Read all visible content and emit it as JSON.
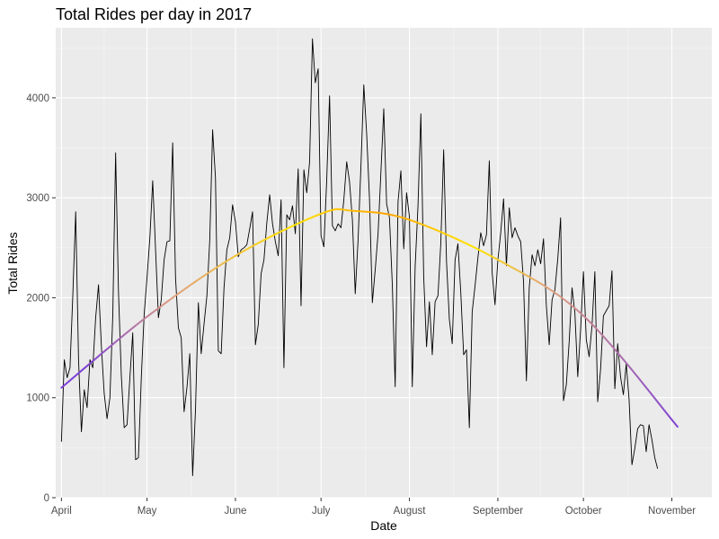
{
  "chart_data": {
    "type": "line",
    "title": "Total Rides per day in 2017",
    "xlabel": "Date",
    "ylabel": "Total Rides",
    "x_ticks": [
      "April",
      "May",
      "June",
      "July",
      "August",
      "September",
      "October",
      "November"
    ],
    "y_ticks": [
      0,
      1000,
      2000,
      3000,
      4000
    ],
    "xlim": [
      "2017-03-30",
      "2017-11-15"
    ],
    "ylim": [
      0,
      4700
    ],
    "grid": true,
    "background": "#EBEBEB",
    "series": [
      {
        "kind": "daily_totals",
        "color": "#000000",
        "x_start": "2017-04-01",
        "x_step_days": 1,
        "values": [
          560,
          1380,
          1200,
          1300,
          2030,
          2860,
          1380,
          660,
          1080,
          900,
          1380,
          1300,
          1800,
          2130,
          1520,
          1040,
          790,
          1000,
          1820,
          3450,
          2060,
          1220,
          700,
          730,
          1200,
          1650,
          380,
          400,
          1200,
          1830,
          2200,
          2600,
          3170,
          2480,
          1800,
          1980,
          2380,
          2560,
          2570,
          3550,
          2200,
          1700,
          1600,
          860,
          1100,
          1440,
          220,
          880,
          1950,
          1440,
          1740,
          2020,
          2580,
          3680,
          3200,
          1470,
          1440,
          2100,
          2480,
          2600,
          2930,
          2760,
          2410,
          2480,
          2500,
          2530,
          2690,
          2860,
          1530,
          1730,
          2240,
          2380,
          2750,
          3030,
          2740,
          2560,
          2420,
          2980,
          1300,
          2830,
          2780,
          2920,
          2640,
          3290,
          1920,
          3280,
          3050,
          3360,
          4590,
          4150,
          4290,
          2620,
          2510,
          3180,
          4020,
          2720,
          2670,
          2740,
          2700,
          2980,
          3360,
          3160,
          2780,
          2040,
          2580,
          3320,
          4130,
          3640,
          2990,
          1950,
          2280,
          2640,
          3260,
          3890,
          2940,
          2800,
          2130,
          1110,
          2960,
          3270,
          2490,
          3050,
          2810,
          1110,
          2310,
          2920,
          3840,
          2210,
          1510,
          1960,
          1430,
          1960,
          2020,
          2550,
          3480,
          2360,
          1780,
          1540,
          2380,
          2540,
          2050,
          1430,
          1480,
          700,
          1860,
          2120,
          2400,
          2650,
          2520,
          2630,
          3370,
          2250,
          1930,
          2380,
          2650,
          2990,
          2320,
          2900,
          2600,
          2700,
          2620,
          2560,
          2160,
          1170,
          2100,
          2430,
          2320,
          2480,
          2340,
          2590,
          1920,
          1530,
          1980,
          2080,
          2390,
          2800,
          970,
          1130,
          1560,
          2100,
          1850,
          1210,
          1680,
          2260,
          1580,
          1410,
          1720,
          2260,
          960,
          1280,
          1820,
          1870,
          1920,
          2270,
          1090,
          1540,
          1210,
          1030,
          1340,
          980,
          330,
          490,
          690,
          730,
          720,
          460,
          730,
          580,
          400,
          290
        ]
      },
      {
        "kind": "smooth_trend",
        "gradient_colors": [
          "#7B3FD6",
          "#E0A080",
          "#FFE400",
          "#FFA500"
        ],
        "points": [
          {
            "x": "2017-04-01",
            "y": 1100
          },
          {
            "x": "2017-05-01",
            "y": 1810
          },
          {
            "x": "2017-06-01",
            "y": 2420
          },
          {
            "x": "2017-07-01",
            "y": 2840
          },
          {
            "x": "2017-07-12",
            "y": 2870
          },
          {
            "x": "2017-08-01",
            "y": 2780
          },
          {
            "x": "2017-09-01",
            "y": 2380
          },
          {
            "x": "2017-10-01",
            "y": 1820
          },
          {
            "x": "2017-11-03",
            "y": 710
          }
        ]
      }
    ]
  }
}
